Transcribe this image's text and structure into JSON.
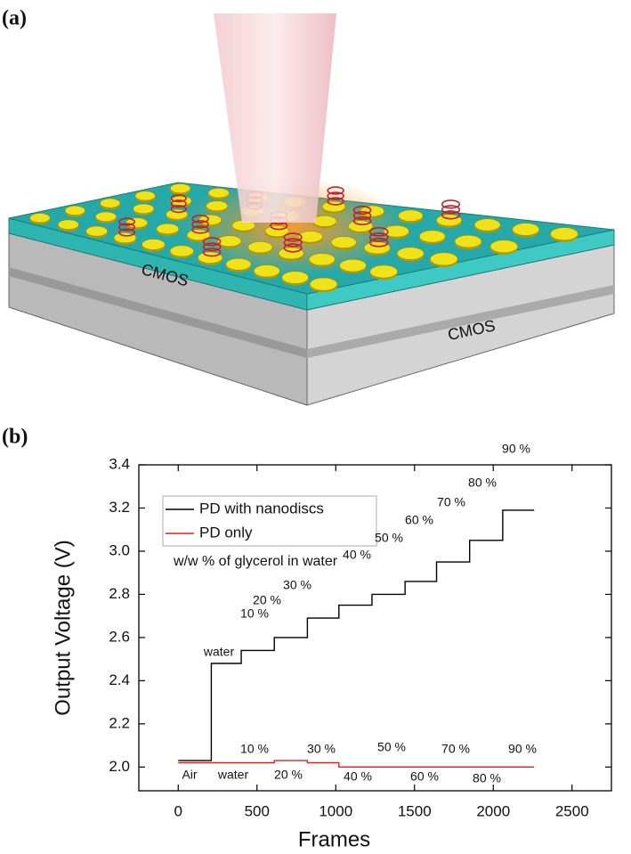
{
  "figure": {
    "panel_labels": [
      "(a)",
      "(b)"
    ],
    "illustration_labels": [
      "CMOS",
      "CMOS"
    ]
  },
  "chart_data": {
    "type": "line",
    "step": true,
    "xlabel": "Frames",
    "ylabel": "Output Voltage (V)",
    "xlim": [
      -250,
      2750
    ],
    "xticks": [
      0,
      500,
      1000,
      1500,
      2000,
      2500
    ],
    "ylim": [
      1.89,
      3.4
    ],
    "yticks": [
      {
        "value": 2,
        "label": "2.0"
      },
      2.2,
      2.4,
      2.6,
      2.8,
      {
        "value": 3,
        "label": "3.0"
      },
      3.2,
      3.4
    ],
    "x": [
      0,
      210,
      210,
      400,
      400,
      610,
      610,
      820,
      820,
      1020,
      1020,
      1230,
      1230,
      1440,
      1440,
      1640,
      1640,
      1850,
      1850,
      2060,
      2060,
      2260
    ],
    "series": [
      {
        "name": "PD with nanodiscs",
        "color": "#000000",
        "values": [
          2.03,
          2.03,
          2.48,
          2.48,
          2.54,
          2.54,
          2.6,
          2.6,
          2.69,
          2.69,
          2.75,
          2.75,
          2.8,
          2.8,
          2.86,
          2.86,
          2.95,
          2.95,
          3.05,
          3.05,
          3.19,
          3.19
        ]
      },
      {
        "name": "PD only",
        "color": "#e0201b",
        "values": [
          2.02,
          2.02,
          2.02,
          2.02,
          2.02,
          2.02,
          2.03,
          2.03,
          2.02,
          2.02,
          2.0,
          2.0,
          2.0,
          2.0,
          2.0,
          2.0,
          2.0,
          2.0,
          2.0,
          2.0,
          2.0,
          2.0
        ]
      }
    ],
    "legend_note": "w/w % of glycerol in water",
    "annotations_top": [
      "water",
      "10 %",
      "20 %",
      "30 %",
      "40 %",
      "50 %",
      "60 %",
      "70 %",
      "80 %",
      "90 %"
    ],
    "annotations_bottom": [
      "Air",
      "water",
      "10 %",
      "20 %",
      "30 %",
      "40 %",
      "50 %",
      "60 %",
      "70 %",
      "80 %",
      "90 %"
    ],
    "legend": "upper left"
  }
}
